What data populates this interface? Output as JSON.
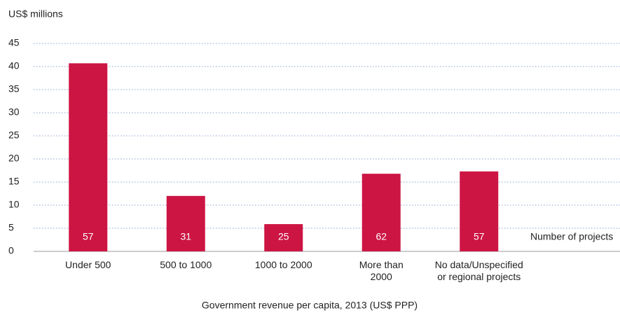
{
  "chart_data": {
    "type": "bar",
    "y_label": "US$ millions",
    "x_label": "Government revenue per capita, 2013 (US$ PPP)",
    "categories": [
      "Under 500",
      "500 to 1000",
      "1000 to 2000",
      "More than\n2000",
      "No data/Unspecified\nor regional projects"
    ],
    "values": [
      40.7,
      12,
      5.9,
      16.8,
      17.3
    ],
    "color": "#cc1543",
    "project_counts": {
      "name": "Number of projects",
      "values": [
        57,
        31,
        25,
        62,
        57
      ]
    },
    "ylim": [
      0,
      45
    ],
    "yticks": [
      0,
      5,
      10,
      15,
      20,
      25,
      30,
      35,
      40,
      45
    ],
    "grid": true
  }
}
